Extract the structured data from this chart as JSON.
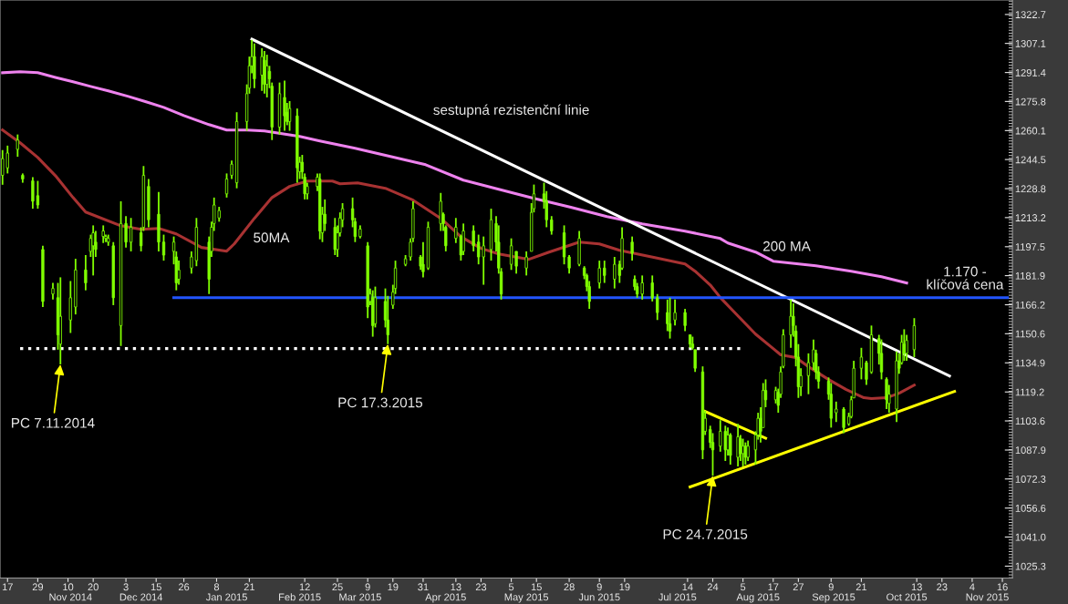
{
  "chart_data": {
    "type": "candlestick",
    "color": "#80ff00",
    "x": [
      "2014-10-15",
      "2014-10-17",
      "2014-10-21",
      "2014-10-23",
      "2014-10-27",
      "2014-10-29",
      "2014-10-31",
      "2014-11-04",
      "2014-11-06",
      "2014-11-07",
      "2014-11-11",
      "2014-11-13",
      "2014-11-17",
      "2014-11-19",
      "2014-11-20",
      "2014-11-21",
      "2014-11-24",
      "2014-11-25",
      "2014-11-26",
      "2014-11-28",
      "2014-12-01",
      "2014-12-03",
      "2014-12-05",
      "2014-12-09",
      "2014-12-10",
      "2014-12-12",
      "2014-12-16",
      "2014-12-18",
      "2014-12-22",
      "2014-12-23",
      "2014-12-24",
      "2014-12-29",
      "2014-12-31",
      "2015-01-05",
      "2015-01-06",
      "2015-01-07",
      "2015-01-09",
      "2015-01-12",
      "2015-01-14",
      "2015-01-16",
      "2015-01-20",
      "2015-01-21",
      "2015-01-22",
      "2015-01-23",
      "2015-01-26",
      "2015-01-27",
      "2015-01-28",
      "2015-01-29",
      "2015-01-30",
      "2015-02-02",
      "2015-02-04",
      "2015-02-05",
      "2015-02-06",
      "2015-02-09",
      "2015-02-10",
      "2015-02-11",
      "2015-02-12",
      "2015-02-13",
      "2015-02-17",
      "2015-02-18",
      "2015-02-19",
      "2015-02-20",
      "2015-02-24",
      "2015-02-25",
      "2015-02-26",
      "2015-02-27",
      "2015-03-03",
      "2015-03-04",
      "2015-03-06",
      "2015-03-09",
      "2015-03-10",
      "2015-03-11",
      "2015-03-12",
      "2015-03-16",
      "2015-03-17",
      "2015-03-19",
      "2015-03-20",
      "2015-03-24",
      "2015-03-26",
      "2015-03-27",
      "2015-03-30",
      "2015-03-31",
      "2015-04-02",
      "2015-04-07",
      "2015-04-08",
      "2015-04-09",
      "2015-04-13",
      "2015-04-15",
      "2015-04-16",
      "2015-04-20",
      "2015-04-22",
      "2015-04-24",
      "2015-04-27",
      "2015-04-29",
      "2015-04-30",
      "2015-05-01",
      "2015-05-05",
      "2015-05-07",
      "2015-05-11",
      "2015-05-13",
      "2015-05-14",
      "2015-05-18",
      "2015-05-19",
      "2015-05-21",
      "2015-05-26",
      "2015-05-28",
      "2015-06-01",
      "2015-06-03",
      "2015-06-04",
      "2015-06-05",
      "2015-06-09",
      "2015-06-11",
      "2015-06-15",
      "2015-06-17",
      "2015-06-18",
      "2015-06-22",
      "2015-06-23",
      "2015-06-24",
      "2015-06-26",
      "2015-06-30",
      "2015-07-02",
      "2015-07-06",
      "2015-07-07",
      "2015-07-09",
      "2015-07-13",
      "2015-07-15",
      "2015-07-16",
      "2015-07-17",
      "2015-07-20",
      "2015-07-21",
      "2015-07-23",
      "2015-07-24",
      "2015-07-27",
      "2015-07-29",
      "2015-07-30",
      "2015-07-31",
      "2015-08-03",
      "2015-08-04",
      "2015-08-05",
      "2015-08-06",
      "2015-08-07",
      "2015-08-10",
      "2015-08-11",
      "2015-08-12",
      "2015-08-13",
      "2015-08-14",
      "2015-08-18",
      "2015-08-19",
      "2015-08-20",
      "2015-08-21",
      "2015-08-24",
      "2015-08-25",
      "2015-08-26",
      "2015-08-27",
      "2015-08-28",
      "2015-08-31",
      "2015-09-02",
      "2015-09-03",
      "2015-09-04",
      "2015-09-08",
      "2015-09-09",
      "2015-09-11",
      "2015-09-14",
      "2015-09-16",
      "2015-09-17",
      "2015-09-18",
      "2015-09-21",
      "2015-09-23",
      "2015-09-25",
      "2015-09-28",
      "2015-09-29",
      "2015-10-01",
      "2015-10-02",
      "2015-10-05",
      "2015-10-06",
      "2015-10-07",
      "2015-10-08",
      "2015-10-09",
      "2015-10-12"
    ],
    "ohlc": [
      [
        1236,
        1249.6,
        1230.9,
        1245
      ],
      [
        1240,
        1252,
        1237,
        1248
      ],
      [
        1250,
        1258,
        1246,
        1255
      ],
      [
        1236,
        1237,
        1232,
        1234
      ],
      [
        1233,
        1235,
        1218,
        1222
      ],
      [
        1225,
        1233,
        1218,
        1220
      ],
      [
        1196,
        1198,
        1165,
        1168
      ],
      [
        1172,
        1178,
        1169,
        1175
      ],
      [
        1170,
        1178,
        1142,
        1150
      ],
      [
        1145,
        1181,
        1134,
        1160
      ],
      [
        1158,
        1179,
        1151,
        1170
      ],
      [
        1165,
        1191,
        1161,
        1185
      ],
      [
        1185,
        1193,
        1174,
        1178
      ],
      [
        1195,
        1204,
        1192,
        1202
      ],
      [
        1198,
        1209,
        1182,
        1205
      ],
      [
        1200,
        1206,
        1192,
        1196
      ],
      [
        1203,
        1209,
        1199.5,
        1206
      ],
      [
        1202,
        1204,
        1200,
        1203
      ],
      [
        1200,
        1204,
        1198,
        1202
      ],
      [
        1198,
        1200,
        1166,
        1170
      ],
      [
        1155,
        1222,
        1144,
        1210
      ],
      [
        1210,
        1214,
        1197,
        1200
      ],
      [
        1200,
        1213,
        1195,
        1208
      ],
      [
        1205,
        1208,
        1195,
        1198
      ],
      [
        1208,
        1241,
        1206,
        1236
      ],
      [
        1230,
        1234,
        1208,
        1212
      ],
      [
        1215,
        1227,
        1195,
        1200
      ],
      [
        1200,
        1204,
        1190,
        1193
      ],
      [
        1195,
        1203,
        1188,
        1200
      ],
      [
        1192,
        1195,
        1174,
        1178
      ],
      [
        1180,
        1190,
        1177,
        1185
      ],
      [
        1186,
        1195,
        1183,
        1192
      ],
      [
        1190,
        1213,
        1187,
        1208
      ],
      [
        1200,
        1203,
        1172,
        1180
      ],
      [
        1195,
        1211,
        1192,
        1208
      ],
      [
        1210,
        1224,
        1206,
        1220
      ],
      [
        1213,
        1219,
        1211,
        1217
      ],
      [
        1226,
        1237,
        1224,
        1234
      ],
      [
        1236,
        1244,
        1234,
        1242
      ],
      [
        1232,
        1270,
        1229,
        1265
      ],
      [
        1265,
        1285,
        1260,
        1280
      ],
      [
        1283,
        1300,
        1280,
        1295
      ],
      [
        1295,
        1309,
        1291,
        1300
      ],
      [
        1300,
        1307,
        1283,
        1288
      ],
      [
        1290,
        1304.5,
        1281.5,
        1300
      ],
      [
        1298,
        1303,
        1280,
        1285
      ],
      [
        1285,
        1301,
        1278,
        1295
      ],
      [
        1292,
        1295,
        1283,
        1288
      ],
      [
        1284,
        1286,
        1255,
        1262
      ],
      [
        1262,
        1286,
        1258,
        1280
      ],
      [
        1278,
        1287,
        1260,
        1268
      ],
      [
        1270,
        1275,
        1263,
        1265
      ],
      [
        1265,
        1276,
        1260,
        1272
      ],
      [
        1268,
        1272,
        1232,
        1240
      ],
      [
        1238,
        1246,
        1234,
        1243
      ],
      [
        1243,
        1247,
        1234,
        1238
      ],
      [
        1235,
        1237,
        1223,
        1226
      ],
      [
        1226,
        1232,
        1223,
        1230
      ],
      [
        1230,
        1237,
        1227.5,
        1235
      ],
      [
        1234,
        1237,
        1201.5,
        1206
      ],
      [
        1205,
        1219,
        1200,
        1215
      ],
      [
        1215,
        1223,
        1206,
        1210
      ],
      [
        1208,
        1213,
        1193,
        1196
      ],
      [
        1196,
        1209,
        1192,
        1205
      ],
      [
        1205,
        1216,
        1203,
        1213
      ],
      [
        1212,
        1221,
        1208,
        1218
      ],
      [
        1218,
        1224,
        1208,
        1212
      ],
      [
        1211,
        1213,
        1200,
        1203
      ],
      [
        1203,
        1209,
        1202,
        1207
      ],
      [
        1198,
        1200,
        1159,
        1165
      ],
      [
        1168,
        1175,
        1166,
        1172
      ],
      [
        1170,
        1174,
        1149,
        1155
      ],
      [
        1156,
        1176,
        1154,
        1170
      ],
      [
        1168,
        1175,
        1154,
        1158
      ],
      [
        1158,
        1171,
        1145,
        1150
      ],
      [
        1166,
        1177,
        1164,
        1173
      ],
      [
        1175,
        1190,
        1172,
        1186
      ],
      [
        1188,
        1193,
        1187,
        1191
      ],
      [
        1192,
        1202,
        1190,
        1200
      ],
      [
        1202,
        1222,
        1200,
        1218
      ],
      [
        1192,
        1193,
        1185,
        1187
      ],
      [
        1188,
        1200,
        1181,
        1184
      ],
      [
        1186,
        1211,
        1185,
        1208
      ],
      [
        1210,
        1226.5,
        1206,
        1222
      ],
      [
        1215,
        1216,
        1206,
        1210
      ],
      [
        1208,
        1209,
        1195,
        1198
      ],
      [
        1202,
        1213,
        1199.5,
        1208
      ],
      [
        1203,
        1204,
        1190,
        1193
      ],
      [
        1195,
        1210,
        1193,
        1206
      ],
      [
        1206,
        1209,
        1195,
        1198
      ],
      [
        1200,
        1204,
        1188,
        1192
      ],
      [
        1192,
        1203,
        1177,
        1198
      ],
      [
        1196,
        1218,
        1190,
        1212
      ],
      [
        1210,
        1214,
        1195,
        1200
      ],
      [
        1200,
        1209,
        1183,
        1186
      ],
      [
        1184,
        1186,
        1169,
        1172
      ],
      [
        1188,
        1202,
        1185,
        1198
      ],
      [
        1195,
        1195,
        1183,
        1187
      ],
      [
        1186,
        1195,
        1182,
        1192
      ],
      [
        1195,
        1221,
        1195,
        1216
      ],
      [
        1218,
        1231,
        1216,
        1226
      ],
      [
        1226,
        1232,
        1218,
        1222
      ],
      [
        1222,
        1227.5,
        1208,
        1212
      ],
      [
        1212,
        1214,
        1204,
        1206
      ],
      [
        1205,
        1209,
        1188,
        1192
      ],
      [
        1192,
        1193,
        1183,
        1186
      ],
      [
        1188,
        1206,
        1187,
        1202
      ],
      [
        1186,
        1187,
        1180,
        1182
      ],
      [
        1182,
        1183,
        1173.5,
        1176
      ],
      [
        1176,
        1179,
        1164,
        1168
      ],
      [
        1178,
        1190,
        1175,
        1186
      ],
      [
        1186,
        1190,
        1178,
        1182
      ],
      [
        1180,
        1192,
        1175,
        1188
      ],
      [
        1188,
        1190,
        1178,
        1182
      ],
      [
        1186,
        1208,
        1185,
        1202
      ],
      [
        1200,
        1203,
        1190,
        1194
      ],
      [
        1180,
        1182,
        1174,
        1176
      ],
      [
        1176,
        1178,
        1170,
        1172
      ],
      [
        1172,
        1182,
        1169,
        1178
      ],
      [
        1178,
        1182,
        1168,
        1170
      ],
      [
        1170,
        1172,
        1158,
        1162
      ],
      [
        1162,
        1169,
        1152,
        1156
      ],
      [
        1156,
        1170,
        1148,
        1152
      ],
      [
        1158,
        1169,
        1155,
        1162
      ],
      [
        1162,
        1164,
        1152,
        1155
      ],
      [
        1150,
        1150,
        1143,
        1145
      ],
      [
        1145,
        1149,
        1142,
        1143
      ],
      [
        1142,
        1142,
        1130,
        1132
      ],
      [
        1130,
        1133,
        1083,
        1088
      ],
      [
        1098,
        1109,
        1096,
        1105
      ],
      [
        1099,
        1101,
        1089,
        1092
      ],
      [
        1092,
        1097,
        1074,
        1088
      ],
      [
        1090,
        1104,
        1087,
        1098
      ],
      [
        1098,
        1101,
        1082,
        1088
      ],
      [
        1088,
        1100,
        1085,
        1096
      ],
      [
        1096,
        1097,
        1080,
        1085
      ],
      [
        1084,
        1102,
        1079,
        1095
      ],
      [
        1094,
        1096,
        1082,
        1086
      ],
      [
        1086,
        1094,
        1079,
        1090
      ],
      [
        1090,
        1092,
        1080,
        1084
      ],
      [
        1084,
        1093,
        1082,
        1090
      ],
      [
        1088,
        1098,
        1080,
        1096
      ],
      [
        1096,
        1108,
        1093.5,
        1105
      ],
      [
        1105,
        1111,
        1092,
        1098
      ],
      [
        1100,
        1124,
        1100,
        1120
      ],
      [
        1120,
        1126,
        1111,
        1115
      ],
      [
        1115,
        1122,
        1113,
        1120
      ],
      [
        1119,
        1121,
        1108,
        1112
      ],
      [
        1118,
        1133,
        1116,
        1130
      ],
      [
        1133,
        1153,
        1132,
        1150
      ],
      [
        1150,
        1169,
        1143,
        1160
      ],
      [
        1160,
        1167,
        1149,
        1155
      ],
      [
        1152,
        1155,
        1133,
        1138
      ],
      [
        1138,
        1145,
        1116,
        1122
      ],
      [
        1122,
        1132,
        1117,
        1128
      ],
      [
        1128,
        1140,
        1118,
        1135
      ],
      [
        1135,
        1147.5,
        1131,
        1142
      ],
      [
        1140,
        1142,
        1126,
        1130
      ],
      [
        1130,
        1133,
        1121,
        1125
      ],
      [
        1125,
        1127,
        1115,
        1118
      ],
      [
        1118,
        1124,
        1100,
        1105
      ],
      [
        1108,
        1114,
        1103,
        1110
      ],
      [
        1110,
        1111,
        1097,
        1100
      ],
      [
        1102,
        1108,
        1101,
        1106
      ],
      [
        1106,
        1117,
        1105,
        1115
      ],
      [
        1116,
        1136,
        1116,
        1132
      ],
      [
        1132,
        1143,
        1126,
        1138
      ],
      [
        1135,
        1136,
        1123,
        1126
      ],
      [
        1130,
        1155,
        1129,
        1150
      ],
      [
        1148,
        1150,
        1134,
        1140
      ],
      [
        1140,
        1147.5,
        1126,
        1130
      ],
      [
        1126,
        1127,
        1110,
        1115
      ],
      [
        1113,
        1123,
        1108,
        1118
      ],
      [
        1110,
        1141,
        1103,
        1136
      ],
      [
        1136,
        1140,
        1129,
        1132
      ],
      [
        1135,
        1150,
        1134,
        1146
      ],
      [
        1145,
        1153,
        1136,
        1140
      ],
      [
        1140,
        1150,
        1136,
        1147
      ],
      [
        1142,
        1159,
        1138,
        1155
      ]
    ],
    "series": [
      {
        "type": "line",
        "color": "#ee82ee",
        "x": [
          "2014-10-15",
          "2014-10-22",
          "2014-10-29",
          "2014-11-05",
          "2014-11-12",
          "2014-11-19",
          "2014-11-26",
          "2014-12-04",
          "2014-12-11",
          "2014-12-18",
          "2014-12-26",
          "2015-01-05",
          "2015-01-12",
          "2015-01-20",
          "2015-01-27",
          "2015-02-03",
          "2015-02-10",
          "2015-02-18",
          "2015-02-25",
          "2015-03-04",
          "2015-03-18",
          "2015-04-01",
          "2015-04-16",
          "2015-04-30",
          "2015-05-14",
          "2015-05-29",
          "2015-06-12",
          "2015-06-26",
          "2015-07-13",
          "2015-07-27",
          "2015-07-30",
          "2015-08-10",
          "2015-08-17",
          "2015-09-03",
          "2015-09-17",
          "2015-09-29",
          "2015-10-09"
        ],
        "values": [
          1291.3,
          1291.8,
          1291.3,
          1288.8,
          1286.4,
          1283.9,
          1281.5,
          1278.5,
          1275.6,
          1272.6,
          1268.2,
          1263.3,
          1260.4,
          1260.4,
          1259.9,
          1258.4,
          1257,
          1254.5,
          1252.5,
          1250.6,
          1246.1,
          1241.7,
          1233.4,
          1228.5,
          1223.6,
          1218.6,
          1213.7,
          1209.8,
          1205.9,
          1201.9,
          1199.5,
          1194.6,
          1189.7,
          1187.2,
          1184.3,
          1181.3,
          1177.9
        ]
      },
      {
        "type": "line",
        "color": "#a83232",
        "x": [
          "2014-10-15",
          "2014-10-22",
          "2014-10-29",
          "2014-11-05",
          "2014-11-12",
          "2014-11-17",
          "2014-12-01",
          "2014-12-09",
          "2014-12-16",
          "2014-12-23",
          "2015-01-02",
          "2015-01-12",
          "2015-01-15",
          "2015-01-23",
          "2015-01-30",
          "2015-02-06",
          "2015-02-13",
          "2015-02-23",
          "2015-02-26",
          "2015-03-05",
          "2015-03-16",
          "2015-03-27",
          "2015-04-07",
          "2015-04-15",
          "2015-04-23",
          "2015-04-30",
          "2015-05-12",
          "2015-05-20",
          "2015-06-01",
          "2015-06-09",
          "2015-06-17",
          "2015-07-01",
          "2015-07-13",
          "2015-07-17",
          "2015-07-23",
          "2015-07-27",
          "2015-08-03",
          "2015-08-10",
          "2015-08-17",
          "2015-08-20",
          "2015-08-26",
          "2015-08-31",
          "2015-09-08",
          "2015-09-15",
          "2015-09-22",
          "2015-09-25",
          "2015-10-01",
          "2015-10-06",
          "2015-10-12"
        ],
        "values": [
          1260.4,
          1253.5,
          1245.6,
          1235.8,
          1224,
          1216.2,
          1208.8,
          1206.9,
          1207.4,
          1204.4,
          1197.1,
          1195.1,
          1199,
          1212.8,
          1224,
          1230,
          1232.9,
          1232.9,
          1231.4,
          1231.9,
          1229,
          1222.6,
          1212.8,
          1202.9,
          1196.6,
          1193.6,
          1190.7,
          1194.6,
          1200,
          1199,
          1195.6,
          1191.6,
          1188.2,
          1184.3,
          1176.9,
          1170.1,
          1160.2,
          1150.4,
          1142.6,
          1139.2,
          1137.7,
          1132.8,
          1125.9,
          1120.5,
          1116.1,
          1115.6,
          1116.1,
          1118.5,
          1122.9
        ]
      },
      {
        "type": "line",
        "color": "#ffffff",
        "x": [
          "2015-01-22",
          "2015-10-26"
        ],
        "values": [
          1309.4,
          1127.8
        ]
      },
      {
        "type": "line",
        "color": "#2255ff",
        "x": [
          "2014-12-22",
          "2015-11-18"
        ],
        "values": [
          1170,
          1170
        ]
      },
      {
        "type": "line",
        "color": "#ffffff",
        "line_style": "dotted",
        "x": [
          "2014-10-22",
          "2015-08-05"
        ],
        "values": [
          1142.6,
          1142.6
        ]
      },
      {
        "type": "line",
        "color": "#ffff00",
        "x": [
          "2015-07-15",
          "2015-10-28"
        ],
        "values": [
          1068,
          1119.5
        ]
      },
      {
        "type": "line",
        "color": "#ffff00",
        "x": [
          "2015-07-21",
          "2015-08-14"
        ],
        "values": [
          1108.7,
          1094.3
        ]
      }
    ],
    "annotations": [
      "sestupná rezistenční linie",
      "50MA",
      "200 MA",
      "1.170 -\nklíčová cena",
      {
        "text": "PC 7.11.2014",
        "x": "2014-11-07",
        "y": 1134
      },
      {
        "text": "PC 17.3.2015",
        "x": "2015-03-17",
        "y": 1145
      },
      {
        "text": "PC 24.7.2015",
        "x": "2015-07-24",
        "y": 1074
      }
    ],
    "xlim": [
      "2014-10-14",
      "2015-11-20"
    ],
    "ylim": [
      1018.9,
      1330.5
    ],
    "xticks": [
      {
        "value": "2014-10-17",
        "label": "17"
      },
      {
        "value": "2014-10-29",
        "label": "29"
      },
      {
        "value": "2014-11-10",
        "label": "10"
      },
      {
        "value": "2014-11-20",
        "label": "20"
      },
      {
        "value": "2014-12-03",
        "label": "3"
      },
      {
        "value": "2014-12-15",
        "label": "15"
      },
      {
        "value": "2014-12-26",
        "label": "26"
      },
      {
        "value": "2015-01-08",
        "label": "8"
      },
      {
        "value": "2015-01-21",
        "label": "21"
      },
      {
        "value": "2015-02-12",
        "label": "12"
      },
      {
        "value": "2015-02-25",
        "label": "25"
      },
      {
        "value": "2015-03-09",
        "label": "9"
      },
      {
        "value": "2015-03-19",
        "label": "19"
      },
      {
        "value": "2015-03-31",
        "label": "31"
      },
      {
        "value": "2015-04-13",
        "label": "13"
      },
      {
        "value": "2015-04-23",
        "label": "23"
      },
      {
        "value": "2015-05-05",
        "label": "5"
      },
      {
        "value": "2015-05-15",
        "label": "15"
      },
      {
        "value": "2015-05-28",
        "label": "28"
      },
      {
        "value": "2015-06-09",
        "label": "9"
      },
      {
        "value": "2015-06-19",
        "label": "19"
      },
      {
        "value": "2015-07-14",
        "label": "14"
      },
      {
        "value": "2015-07-24",
        "label": "24"
      },
      {
        "value": "2015-08-05",
        "label": "5"
      },
      {
        "value": "2015-08-17",
        "label": "17"
      },
      {
        "value": "2015-08-27",
        "label": "27"
      },
      {
        "value": "2015-09-09",
        "label": "9"
      },
      {
        "value": "2015-09-21",
        "label": "21"
      },
      {
        "value": "2015-10-13",
        "label": "13"
      },
      {
        "value": "2015-10-23",
        "label": "23"
      },
      {
        "value": "2015-11-04",
        "label": "4"
      },
      {
        "value": "2015-11-16",
        "label": "16"
      }
    ],
    "x2lim": [
      "2014-10-14",
      "2015-11-20"
    ],
    "x2ticks": [
      {
        "value": "2014-11-11",
        "label": "Nov 2014"
      },
      {
        "value": "2014-12-09",
        "label": "Dec 2014"
      },
      {
        "value": "2015-01-12",
        "label": "Jan 2015"
      },
      {
        "value": "2015-02-10",
        "label": "Feb 2015"
      },
      {
        "value": "2015-03-06",
        "label": "Mar 2015"
      },
      {
        "value": "2015-04-09",
        "label": "Apr 2015"
      },
      {
        "value": "2015-05-11",
        "label": "May 2015"
      },
      {
        "value": "2015-06-09",
        "label": "Jun 2015"
      },
      {
        "value": "2015-07-10",
        "label": "Jul 2015"
      },
      {
        "value": "2015-08-11",
        "label": "Aug 2015"
      },
      {
        "value": "2015-09-10",
        "label": "Sep 2015"
      },
      {
        "value": "2015-10-09",
        "label": "Oct 2015"
      },
      {
        "value": "2015-11-10",
        "label": "Nov 2015"
      }
    ],
    "yticks": [
      1025.3,
      {
        "value": 1041.0,
        "label": "1041.0"
      },
      1056.6,
      1072.3,
      1087.9,
      1103.6,
      1119.2,
      1134.9,
      1150.6,
      1166.2,
      1181.9,
      1197.5,
      1213.2,
      1228.8,
      1244.5,
      1260.1,
      1275.8,
      1291.4,
      1307.1,
      1322.7
    ]
  }
}
